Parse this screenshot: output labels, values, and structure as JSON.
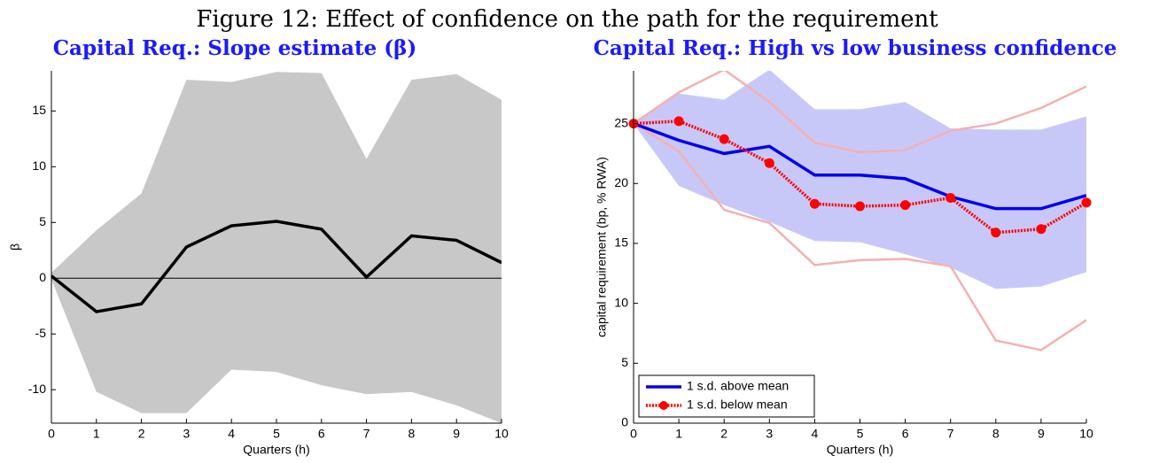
{
  "title": "Figure 12: Effect of confidence on the path for the requirement",
  "chart_data": [
    {
      "type": "line",
      "title": "Capital Req.: Slope estimate (β)",
      "xlabel": "Quarters (h)",
      "ylabel": "β",
      "x": [
        0,
        1,
        2,
        3,
        4,
        5,
        6,
        7,
        8,
        9,
        10
      ],
      "xlim": [
        0,
        10
      ],
      "xticks": [
        0,
        1,
        2,
        3,
        4,
        5,
        6,
        7,
        8,
        9,
        10
      ],
      "ylim": [
        -13,
        18.6
      ],
      "yticks": [
        -10,
        -5,
        0,
        5,
        10,
        15
      ],
      "hline": 0,
      "bands": [
        {
          "style": "fill",
          "color": "#c8c8c8",
          "upper": [
            0.5,
            4.3,
            7.6,
            17.8,
            17.6,
            18.5,
            18.4,
            10.7,
            17.8,
            18.3,
            16.0
          ],
          "lower": [
            -0.1,
            -10.2,
            -12.1,
            -12.1,
            -8.2,
            -8.4,
            -9.6,
            -10.4,
            -10.2,
            -11.4,
            -13.0
          ]
        }
      ],
      "series": [
        {
          "color": "#000000",
          "values": [
            0.2,
            -3.0,
            -2.3,
            2.8,
            4.7,
            5.1,
            4.4,
            0.1,
            3.8,
            3.4,
            1.4
          ]
        }
      ]
    },
    {
      "type": "line",
      "title": "Capital Req.: High vs low business confidence",
      "xlabel": "Quarters (h)",
      "ylabel": "capital requirement (bp, % RWA)",
      "x": [
        0,
        1,
        2,
        3,
        4,
        5,
        6,
        7,
        8,
        9,
        10
      ],
      "xlim": [
        0,
        10
      ],
      "xticks": [
        0,
        1,
        2,
        3,
        4,
        5,
        6,
        7,
        8,
        9,
        10
      ],
      "ylim": [
        0,
        29.4
      ],
      "yticks": [
        0,
        5,
        10,
        15,
        20,
        25
      ],
      "legend": "lower left",
      "bands": [
        {
          "style": "fill",
          "color": "#c8c8f8",
          "upper": [
            25,
            27.5,
            27.0,
            29.5,
            26.2,
            26.2,
            26.8,
            24.6,
            24.5,
            24.5,
            25.6
          ],
          "lower": [
            25,
            19.8,
            18.2,
            16.8,
            15.2,
            15.1,
            14.1,
            13.0,
            11.2,
            11.4,
            12.6
          ]
        },
        {
          "style": "line",
          "color": "#f5b0b0",
          "upper": [
            25,
            27.6,
            29.5,
            26.8,
            23.4,
            22.6,
            22.8,
            24.4,
            25.0,
            26.3,
            28.1
          ],
          "lower": [
            25,
            22.7,
            17.8,
            16.7,
            13.2,
            13.6,
            13.7,
            13.1,
            6.9,
            6.1,
            8.6
          ]
        }
      ],
      "series": [
        {
          "name": "1 s.d. above mean",
          "color": "#0000ee",
          "values": [
            25,
            23.6,
            22.5,
            23.1,
            20.7,
            20.7,
            20.4,
            18.9,
            17.9,
            17.9,
            19.0
          ]
        },
        {
          "name": "1 s.d. below mean",
          "color": "#ff0000",
          "dashed": true,
          "marker": true,
          "values": [
            25,
            25.2,
            23.7,
            21.7,
            18.3,
            18.1,
            18.2,
            18.8,
            15.9,
            16.2,
            18.4
          ]
        }
      ]
    }
  ]
}
